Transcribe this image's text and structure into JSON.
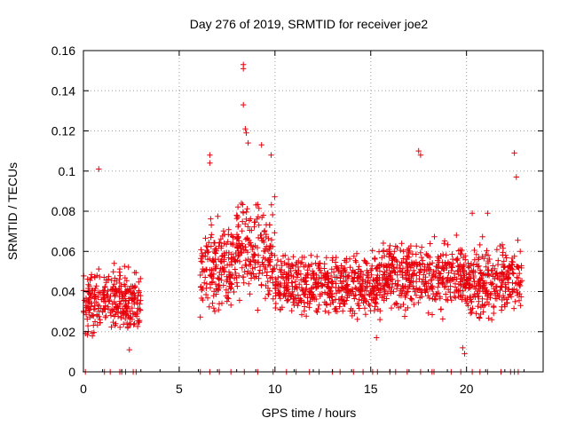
{
  "chart_data": {
    "type": "scatter",
    "title": "Day 276 of 2019, SRMTID for receiver joe2",
    "xlabel": "GPS time / hours",
    "ylabel": "SRMTID / TECUs",
    "xlim": [
      0,
      24
    ],
    "ylim": [
      0,
      0.16
    ],
    "grid": true,
    "marker": "+",
    "series_color": "#e8000b",
    "x_ticks": [
      0,
      5,
      10,
      15,
      20
    ],
    "x_tick_labels": [
      "0",
      "5",
      "10",
      "15",
      "20"
    ],
    "y_ticks": [
      0,
      0.02,
      0.04,
      0.06,
      0.08,
      0.1,
      0.12,
      0.14,
      0.16
    ],
    "y_tick_labels": [
      "0",
      "0.02",
      "0.04",
      "0.06",
      "0.08",
      "0.1",
      "0.12",
      "0.14",
      "0.16"
    ],
    "series": [
      {
        "name": "SRMTID",
        "segments": [
          {
            "x_start": 0.0,
            "x_end": 3.0,
            "y_mean": 0.035,
            "y_spread": 0.012
          },
          {
            "x_start": 6.1,
            "x_end": 8.0,
            "y_mean": 0.052,
            "y_spread": 0.016
          },
          {
            "x_start": 8.0,
            "x_end": 10.0,
            "y_mean": 0.06,
            "y_spread": 0.02
          },
          {
            "x_start": 10.0,
            "x_end": 15.5,
            "y_mean": 0.043,
            "y_spread": 0.012
          },
          {
            "x_start": 15.5,
            "x_end": 20.0,
            "y_mean": 0.048,
            "y_spread": 0.014
          },
          {
            "x_start": 20.0,
            "x_end": 22.9,
            "y_mean": 0.045,
            "y_spread": 0.014
          }
        ],
        "highlights": [
          {
            "x": 0.8,
            "y": 0.101
          },
          {
            "x": 8.35,
            "y": 0.153
          },
          {
            "x": 8.35,
            "y": 0.151
          },
          {
            "x": 8.35,
            "y": 0.133
          },
          {
            "x": 8.45,
            "y": 0.121
          },
          {
            "x": 8.5,
            "y": 0.119
          },
          {
            "x": 8.6,
            "y": 0.114
          },
          {
            "x": 9.3,
            "y": 0.113
          },
          {
            "x": 9.8,
            "y": 0.108
          },
          {
            "x": 6.6,
            "y": 0.108
          },
          {
            "x": 6.6,
            "y": 0.104
          },
          {
            "x": 17.5,
            "y": 0.11
          },
          {
            "x": 17.6,
            "y": 0.108
          },
          {
            "x": 22.5,
            "y": 0.109
          },
          {
            "x": 22.6,
            "y": 0.097
          },
          {
            "x": 20.3,
            "y": 0.079
          },
          {
            "x": 21.1,
            "y": 0.079
          },
          {
            "x": 19.8,
            "y": 0.012
          },
          {
            "x": 2.4,
            "y": 0.011
          },
          {
            "x": 19.9,
            "y": 0.009
          },
          {
            "x": 15.3,
            "y": 0.017
          }
        ],
        "zero_x": [
          0.1,
          1.1,
          1.4,
          1.9,
          2.0,
          2.2,
          2.6,
          2.75,
          6.1,
          6.6,
          7.1,
          7.7,
          8.4,
          9.1,
          9.9,
          10.6,
          11.1,
          11.8,
          12.3,
          13.0,
          13.4,
          14.1,
          14.6,
          15.1,
          15.35,
          16.0,
          16.3,
          16.9,
          17.6,
          18.2,
          18.3,
          19.2,
          19.7,
          20.3,
          20.7,
          21.1,
          21.8,
          22.3,
          22.5,
          22.7
        ]
      }
    ]
  }
}
